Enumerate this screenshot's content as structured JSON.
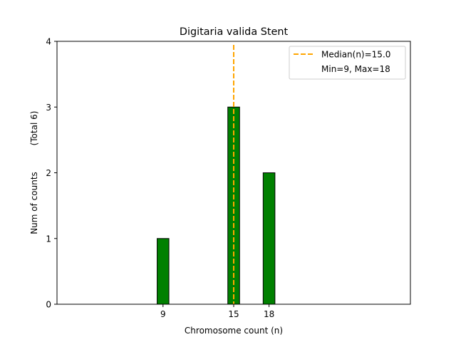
{
  "chart_data": {
    "type": "bar",
    "title": "Digitaria valida Stent",
    "xlabel": "Chromosome count (n)",
    "ylabel": "Num of counts",
    "ylabel_secondary": "(Total 6)",
    "xlim": [
      0,
      30
    ],
    "ylim": [
      0,
      4
    ],
    "bar_width": 1,
    "x": [
      9,
      15,
      18
    ],
    "values": [
      1,
      3,
      2
    ],
    "x_ticks": [
      9,
      15,
      18
    ],
    "y_ticks": [
      0,
      1,
      2,
      3,
      4
    ],
    "median_line": {
      "x": 15.0,
      "label": "Median(n)=15.0",
      "color": "#ffa500"
    },
    "legend_note": "Min=9, Max=18",
    "legend_position": "top-right",
    "bar_color": "#008000",
    "edge_color": "#000000",
    "grid": false
  }
}
